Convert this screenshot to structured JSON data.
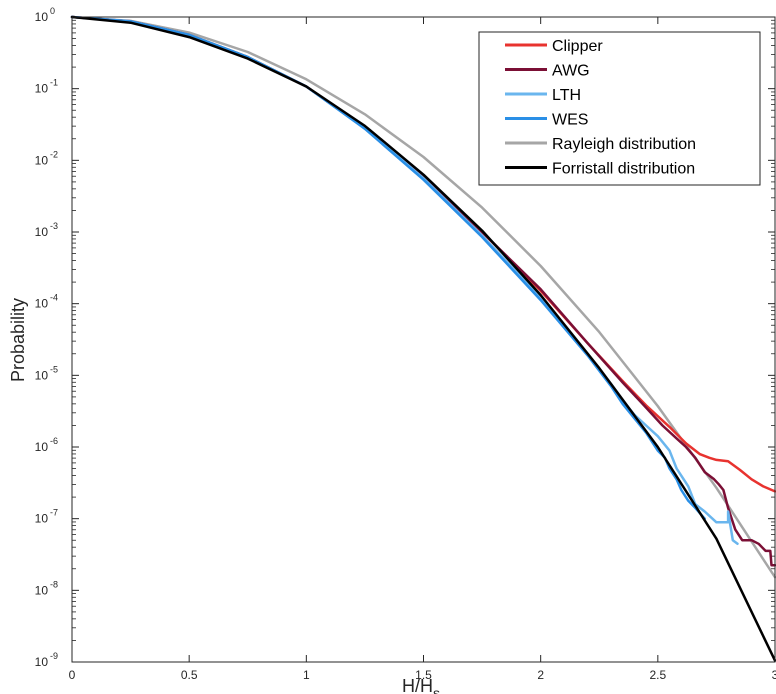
{
  "chart_data": {
    "type": "line",
    "title": "",
    "xlabel": "H/H",
    "xlabel_subscript": "s",
    "ylabel": "Probability",
    "xlim": [
      0,
      3
    ],
    "ylim_log10": [
      -9,
      0
    ],
    "yscale": "log",
    "grid": false,
    "legend_position": "top-right",
    "x_ticks": [
      {
        "value": 0,
        "label": "0"
      },
      {
        "value": 0.5,
        "label": "0.5"
      },
      {
        "value": 1,
        "label": "1"
      },
      {
        "value": 1.5,
        "label": "1.5"
      },
      {
        "value": 2,
        "label": "2"
      },
      {
        "value": 2.5,
        "label": "2.5"
      },
      {
        "value": 3,
        "label": "3"
      }
    ],
    "y_ticks": [
      {
        "exp": 0,
        "base": "10",
        "sup": "0"
      },
      {
        "exp": -1,
        "base": "10",
        "sup": "-1"
      },
      {
        "exp": -2,
        "base": "10",
        "sup": "-2"
      },
      {
        "exp": -3,
        "base": "10",
        "sup": "-3"
      },
      {
        "exp": -4,
        "base": "10",
        "sup": "-4"
      },
      {
        "exp": -5,
        "base": "10",
        "sup": "-5"
      },
      {
        "exp": -6,
        "base": "10",
        "sup": "-6"
      },
      {
        "exp": -7,
        "base": "10",
        "sup": "-7"
      },
      {
        "exp": -8,
        "base": "10",
        "sup": "-8"
      },
      {
        "exp": -9,
        "base": "10",
        "sup": "-9"
      }
    ],
    "series": [
      {
        "name": "Clipper",
        "color": "#e8332f",
        "step": false,
        "points": [
          [
            0,
            0
          ],
          [
            0.25,
            -0.06
          ],
          [
            0.5,
            -0.25
          ],
          [
            0.75,
            -0.56
          ],
          [
            1,
            -0.97
          ],
          [
            1.25,
            -1.55
          ],
          [
            1.5,
            -2.22
          ],
          [
            1.75,
            -3.0
          ],
          [
            2,
            -3.82
          ],
          [
            2.2,
            -4.55
          ],
          [
            2.35,
            -5.08
          ],
          [
            2.45,
            -5.42
          ],
          [
            2.55,
            -5.72
          ],
          [
            2.62,
            -5.95
          ],
          [
            2.68,
            -6.1
          ],
          [
            2.72,
            -6.15
          ],
          [
            2.75,
            -6.18
          ],
          [
            2.8,
            -6.2
          ],
          [
            2.85,
            -6.32
          ],
          [
            2.9,
            -6.45
          ],
          [
            2.95,
            -6.55
          ],
          [
            3.0,
            -6.62
          ]
        ]
      },
      {
        "name": "AWG",
        "color": "#7b0f35",
        "step": false,
        "points": [
          [
            0,
            0
          ],
          [
            0.25,
            -0.06
          ],
          [
            0.5,
            -0.25
          ],
          [
            0.75,
            -0.56
          ],
          [
            1,
            -0.97
          ],
          [
            1.25,
            -1.55
          ],
          [
            1.5,
            -2.22
          ],
          [
            1.75,
            -3.0
          ],
          [
            2,
            -3.8
          ],
          [
            2.2,
            -4.55
          ],
          [
            2.35,
            -5.1
          ],
          [
            2.45,
            -5.45
          ],
          [
            2.52,
            -5.7
          ],
          [
            2.58,
            -5.88
          ],
          [
            2.62,
            -6.0
          ],
          [
            2.66,
            -6.15
          ],
          [
            2.7,
            -6.35
          ],
          [
            2.74,
            -6.45
          ],
          [
            2.76,
            -6.52
          ],
          [
            2.78,
            -6.6
          ],
          [
            2.8,
            -6.85
          ],
          [
            2.83,
            -7.15
          ],
          [
            2.86,
            -7.3
          ],
          [
            2.9,
            -7.3
          ],
          [
            2.93,
            -7.35
          ],
          [
            2.96,
            -7.45
          ],
          [
            2.98,
            -7.45
          ],
          [
            2.985,
            -7.65
          ],
          [
            3.0,
            -7.65
          ]
        ]
      },
      {
        "name": "LTH",
        "color": "#6ab6ee",
        "step": false,
        "points": [
          [
            0,
            0
          ],
          [
            0.25,
            -0.06
          ],
          [
            0.5,
            -0.25
          ],
          [
            0.75,
            -0.56
          ],
          [
            1,
            -0.97
          ],
          [
            1.25,
            -1.55
          ],
          [
            1.5,
            -2.25
          ],
          [
            1.75,
            -3.05
          ],
          [
            2,
            -3.92
          ],
          [
            2.2,
            -4.7
          ],
          [
            2.3,
            -5.12
          ],
          [
            2.35,
            -5.35
          ],
          [
            2.4,
            -5.55
          ],
          [
            2.45,
            -5.7
          ],
          [
            2.5,
            -5.85
          ],
          [
            2.55,
            -6.05
          ],
          [
            2.58,
            -6.3
          ],
          [
            2.6,
            -6.4
          ],
          [
            2.63,
            -6.55
          ],
          [
            2.66,
            -6.8
          ],
          [
            2.7,
            -6.9
          ],
          [
            2.75,
            -7.05
          ],
          [
            2.8,
            -7.05
          ],
          [
            2.8,
            -6.9
          ],
          [
            2.82,
            -7.3
          ],
          [
            2.84,
            -7.35
          ]
        ]
      },
      {
        "name": "WES",
        "color": "#2a8fe6",
        "step": false,
        "points": [
          [
            0,
            0
          ],
          [
            0.25,
            -0.06
          ],
          [
            0.5,
            -0.25
          ],
          [
            0.75,
            -0.56
          ],
          [
            1,
            -0.97
          ],
          [
            1.25,
            -1.56
          ],
          [
            1.5,
            -2.27
          ],
          [
            1.75,
            -3.07
          ],
          [
            2,
            -3.95
          ],
          [
            2.2,
            -4.72
          ],
          [
            2.3,
            -5.15
          ],
          [
            2.35,
            -5.4
          ],
          [
            2.4,
            -5.6
          ],
          [
            2.45,
            -5.8
          ],
          [
            2.48,
            -5.95
          ],
          [
            2.5,
            -6.05
          ],
          [
            2.53,
            -6.15
          ],
          [
            2.55,
            -6.3
          ],
          [
            2.58,
            -6.45
          ],
          [
            2.6,
            -6.6
          ],
          [
            2.63,
            -6.75
          ],
          [
            2.66,
            -6.85
          ],
          [
            2.7,
            -7.0
          ]
        ]
      },
      {
        "name": "Rayleigh distribution",
        "color": "#a6a6a6",
        "step": false,
        "points": [
          [
            0,
            0
          ],
          [
            0.25,
            -0.054
          ],
          [
            0.5,
            -0.217
          ],
          [
            0.75,
            -0.489
          ],
          [
            1,
            -0.869
          ],
          [
            1.25,
            -1.357
          ],
          [
            1.5,
            -1.954
          ],
          [
            1.75,
            -2.66
          ],
          [
            2,
            -3.474
          ],
          [
            2.25,
            -4.397
          ],
          [
            2.5,
            -5.429
          ],
          [
            2.75,
            -6.569
          ],
          [
            3,
            -7.817
          ]
        ]
      },
      {
        "name": "Forristall distribution",
        "color": "#000000",
        "step": false,
        "points": [
          [
            0,
            0
          ],
          [
            0.25,
            -0.08
          ],
          [
            0.5,
            -0.28
          ],
          [
            0.75,
            -0.58
          ],
          [
            1,
            -0.97
          ],
          [
            1.25,
            -1.52
          ],
          [
            1.5,
            -2.2
          ],
          [
            1.75,
            -2.98
          ],
          [
            2,
            -3.88
          ],
          [
            2.25,
            -4.9
          ],
          [
            2.5,
            -6.0
          ],
          [
            2.75,
            -7.28
          ],
          [
            3,
            -8.98
          ]
        ]
      }
    ]
  }
}
